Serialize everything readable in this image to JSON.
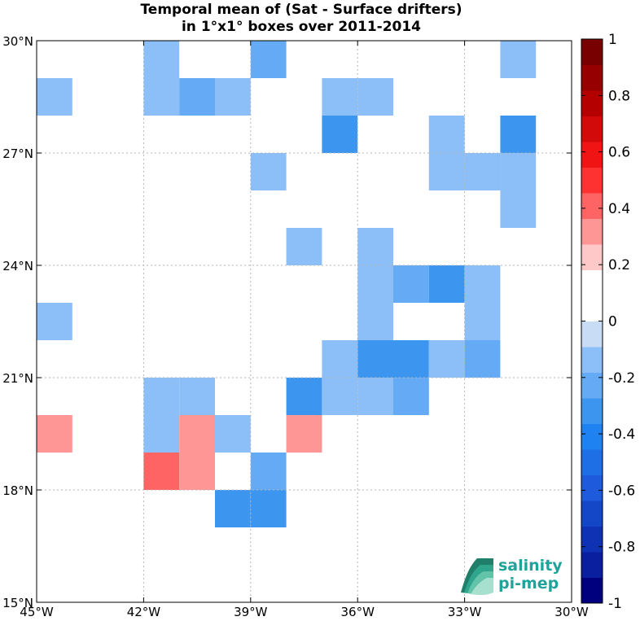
{
  "chart_data": {
    "type": "heatmap",
    "title": [
      "Temporal mean of (Sat - Surface drifters)",
      "in 1°x1° boxes over 2011-2014"
    ],
    "x_ticks": [
      {
        "value": -45,
        "label": "45°W"
      },
      {
        "value": -42,
        "label": "42°W"
      },
      {
        "value": -39,
        "label": "39°W"
      },
      {
        "value": -36,
        "label": "36°W"
      },
      {
        "value": -33,
        "label": "33°W"
      },
      {
        "value": -30,
        "label": "30°W"
      }
    ],
    "y_ticks": [
      {
        "value": 15,
        "label": "15°N"
      },
      {
        "value": 18,
        "label": "18°N"
      },
      {
        "value": 21,
        "label": "21°N"
      },
      {
        "value": 24,
        "label": "24°N"
      },
      {
        "value": 27,
        "label": "27°N"
      },
      {
        "value": 30,
        "label": "30°N"
      }
    ],
    "xlim": [
      -45,
      -30
    ],
    "ylim": [
      15,
      30
    ],
    "grid": true,
    "colorbar": {
      "range": [
        -1,
        1
      ],
      "ticks": [
        {
          "value": 1,
          "label": "1"
        },
        {
          "value": 0.8,
          "label": "0.8"
        },
        {
          "value": 0.6,
          "label": "0.6"
        },
        {
          "value": 0.4,
          "label": "0.4"
        },
        {
          "value": 0.2,
          "label": "0.2"
        },
        {
          "value": 0,
          "label": "0"
        },
        {
          "value": -0.2,
          "label": "-0.2"
        },
        {
          "value": -0.4,
          "label": "-0.4"
        },
        {
          "value": -0.6,
          "label": "-0.6"
        },
        {
          "value": -0.8,
          "label": "-0.8"
        },
        {
          "value": -1,
          "label": "-1"
        }
      ],
      "colors": [
        "#00007f",
        "#0a1ea0",
        "#0f32b4",
        "#1446c8",
        "#1e5adc",
        "#1e6ee6",
        "#1e82f0",
        "#3c96f0",
        "#64aaf5",
        "#8cbef7",
        "#c8dcf5",
        "#ffffff",
        "#ffffff",
        "#ffc8c8",
        "#ff9696",
        "#ff6464",
        "#ff3232",
        "#f01414",
        "#d20a0a",
        "#b40000",
        "#960000",
        "#780000"
      ]
    },
    "cells": [
      {
        "lon": -42,
        "lat": 29,
        "value": -0.1
      },
      {
        "lon": -39,
        "lat": 29,
        "value": -0.2
      },
      {
        "lon": -32,
        "lat": 29,
        "value": -0.1
      },
      {
        "lon": -45,
        "lat": 28,
        "value": -0.1
      },
      {
        "lon": -42,
        "lat": 28,
        "value": -0.1
      },
      {
        "lon": -41,
        "lat": 28,
        "value": -0.2
      },
      {
        "lon": -40,
        "lat": 28,
        "value": -0.1
      },
      {
        "lon": -37,
        "lat": 28,
        "value": -0.1
      },
      {
        "lon": -36,
        "lat": 28,
        "value": -0.1
      },
      {
        "lon": -37,
        "lat": 27,
        "value": -0.3
      },
      {
        "lon": -34,
        "lat": 27,
        "value": -0.1
      },
      {
        "lon": -32,
        "lat": 27,
        "value": -0.3
      },
      {
        "lon": -39,
        "lat": 26,
        "value": -0.1
      },
      {
        "lon": -34,
        "lat": 26,
        "value": -0.1
      },
      {
        "lon": -33,
        "lat": 26,
        "value": -0.1
      },
      {
        "lon": -32,
        "lat": 26,
        "value": -0.1
      },
      {
        "lon": -32,
        "lat": 25,
        "value": -0.1
      },
      {
        "lon": -38,
        "lat": 24,
        "value": -0.1
      },
      {
        "lon": -36,
        "lat": 24,
        "value": -0.1
      },
      {
        "lon": -36,
        "lat": 23,
        "value": -0.1
      },
      {
        "lon": -35,
        "lat": 23,
        "value": -0.2
      },
      {
        "lon": -34,
        "lat": 23,
        "value": -0.3
      },
      {
        "lon": -33,
        "lat": 23,
        "value": -0.1
      },
      {
        "lon": -45,
        "lat": 22,
        "value": -0.1
      },
      {
        "lon": -36,
        "lat": 22,
        "value": -0.1
      },
      {
        "lon": -33,
        "lat": 22,
        "value": -0.1
      },
      {
        "lon": -37,
        "lat": 21,
        "value": -0.1
      },
      {
        "lon": -36,
        "lat": 21,
        "value": -0.3
      },
      {
        "lon": -35,
        "lat": 21,
        "value": -0.3
      },
      {
        "lon": -34,
        "lat": 21,
        "value": -0.1
      },
      {
        "lon": -33,
        "lat": 21,
        "value": -0.2
      },
      {
        "lon": -42,
        "lat": 20,
        "value": -0.1
      },
      {
        "lon": -41,
        "lat": 20,
        "value": -0.1
      },
      {
        "lon": -38,
        "lat": 20,
        "value": -0.3
      },
      {
        "lon": -37,
        "lat": 20,
        "value": -0.1
      },
      {
        "lon": -36,
        "lat": 20,
        "value": -0.1
      },
      {
        "lon": -35,
        "lat": 20,
        "value": -0.2
      },
      {
        "lon": -45,
        "lat": 19,
        "value": 0.3
      },
      {
        "lon": -43,
        "lat": 19,
        "value": 0.1
      },
      {
        "lon": -42,
        "lat": 19,
        "value": -0.1
      },
      {
        "lon": -41,
        "lat": 19,
        "value": 0.3
      },
      {
        "lon": -40,
        "lat": 19,
        "value": -0.1
      },
      {
        "lon": -38,
        "lat": 19,
        "value": 0.3
      },
      {
        "lon": -35,
        "lat": 19,
        "value": 0.1
      },
      {
        "lon": -42,
        "lat": 18,
        "value": 0.4
      },
      {
        "lon": -41,
        "lat": 18,
        "value": 0.3
      },
      {
        "lon": -39,
        "lat": 18,
        "value": -0.2
      },
      {
        "lon": -40,
        "lat": 17,
        "value": -0.3
      },
      {
        "lon": -39,
        "lat": 17,
        "value": -0.3
      }
    ]
  },
  "logo": {
    "line1": "salinity",
    "line2": "pi-mep"
  }
}
